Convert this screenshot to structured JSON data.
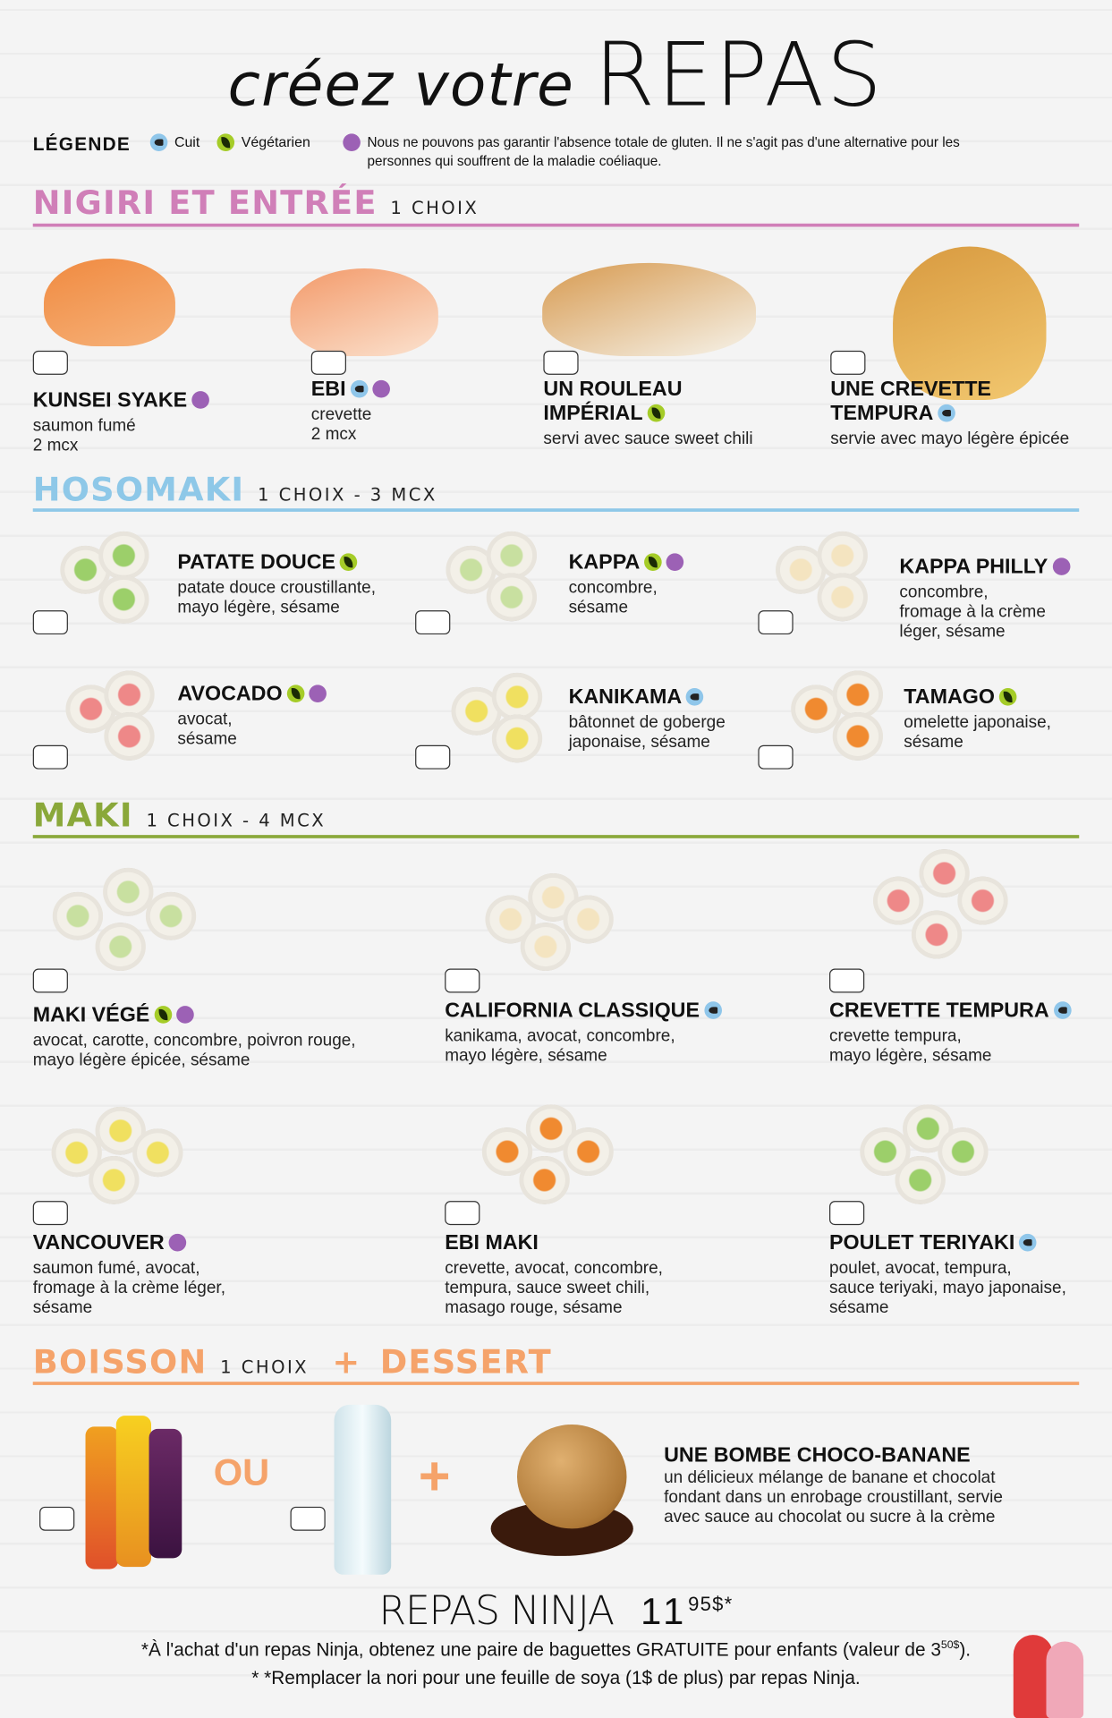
{
  "header": {
    "title_small": "créez votre",
    "title_big": "REPAS"
  },
  "legend": {
    "label": "LÉGENDE",
    "cuit": "Cuit",
    "vegetarien": "Végétarien",
    "gluten_note": "Nous ne pouvons pas garantir l'absence totale de gluten. Il ne s'agit pas d'une alternative pour les personnes qui souffrent de la maladie coéliaque."
  },
  "colors": {
    "nigiri": "#d07fb8",
    "hosomaki": "#8ec8e8",
    "maki": "#8aa83a",
    "boisson": "#f5a36a",
    "cuit": "#8fc6ea",
    "vegetarien": "#a5cc28",
    "gluten": "#9c61b5"
  },
  "sections": [
    {
      "title": "NIGIRI ET ENTRÉE",
      "sub": "1 CHOIX",
      "items": [
        {
          "name": "KUNSEI SYAKE",
          "icons": [
            "gluten"
          ],
          "desc": [
            "saumon fumé",
            "2 mcx"
          ]
        },
        {
          "name": "EBI",
          "icons": [
            "cuit",
            "gluten"
          ],
          "desc": [
            "crevette",
            "2 mcx"
          ]
        },
        {
          "name": "UN ROULEAU IMPÉRIAL",
          "icons": [
            "veg"
          ],
          "desc": [
            "servi avec sauce sweet chili"
          ]
        },
        {
          "name": "UNE CREVETTE TEMPURA",
          "icons": [
            "cuit"
          ],
          "desc": [
            "servie avec mayo légère épicée"
          ]
        }
      ]
    },
    {
      "title": "HOSOMAKI",
      "sub": "1 CHOIX - 3 MCX",
      "items": [
        {
          "name": "PATATE DOUCE",
          "icons": [
            "veg"
          ],
          "desc": [
            "patate douce croustillante,",
            "mayo légère, sésame"
          ]
        },
        {
          "name": "KAPPA",
          "icons": [
            "veg",
            "gluten"
          ],
          "desc": [
            "concombre,",
            "sésame"
          ]
        },
        {
          "name": "KAPPA PHILLY",
          "icons": [
            "gluten"
          ],
          "desc": [
            "concombre,",
            "fromage à la crème",
            "léger, sésame"
          ]
        },
        {
          "name": "AVOCADO",
          "icons": [
            "veg",
            "gluten"
          ],
          "desc": [
            "avocat,",
            "sésame"
          ]
        },
        {
          "name": "KANIKAMA",
          "icons": [
            "cuit"
          ],
          "desc": [
            "bâtonnet de goberge",
            "japonaise, sésame"
          ]
        },
        {
          "name": "TAMAGO",
          "icons": [
            "veg"
          ],
          "desc": [
            "omelette japonaise,",
            "sésame"
          ]
        }
      ]
    },
    {
      "title": "MAKI",
      "sub": "1 CHOIX - 4 MCX",
      "items": [
        {
          "name": "MAKI VÉGÉ",
          "icons": [
            "veg",
            "gluten"
          ],
          "desc": [
            "avocat, carotte, concombre, poivron rouge,",
            "mayo légère épicée, sésame"
          ]
        },
        {
          "name": "CALIFORNIA CLASSIQUE",
          "icons": [
            "cuit"
          ],
          "desc": [
            "kanikama, avocat, concombre,",
            "mayo légère, sésame"
          ]
        },
        {
          "name": "CREVETTE TEMPURA",
          "icons": [
            "cuit"
          ],
          "desc": [
            "crevette tempura,",
            "mayo légère, sésame"
          ]
        },
        {
          "name": "VANCOUVER",
          "icons": [
            "gluten"
          ],
          "desc": [
            "saumon fumé, avocat,",
            "fromage à la crème léger,",
            "sésame"
          ]
        },
        {
          "name": "EBI MAKI",
          "icons": [],
          "desc": [
            "crevette, avocat, concombre,",
            "tempura, sauce sweet chili,",
            "masago rouge, sésame"
          ]
        },
        {
          "name": "POULET TERIYAKI",
          "icons": [
            "cuit"
          ],
          "desc": [
            "poulet, avocat, tempura,",
            "sauce teriyaki, mayo japonaise,",
            "sésame"
          ]
        }
      ]
    }
  ],
  "boisson": {
    "title": "BOISSON",
    "sub": "1 CHOIX",
    "plus": "+",
    "title2": "DESSERT",
    "ou": "OU",
    "plus_sign": "+",
    "dessert": {
      "name": "UNE BOMBE CHOCO-BANANE",
      "desc": [
        "un délicieux mélange de banane et chocolat",
        "fondant dans un enrobage croustillant, servie",
        "avec sauce au chocolat ou sucre à la crème"
      ]
    }
  },
  "footer": {
    "meal": "REPAS NINJA",
    "price_main": "11",
    "price_cents": "95$*",
    "note1": "*À l'achat d'un repas Ninja, obtenez une paire de baguettes GRATUITE pour enfants (valeur de 3",
    "note1_sup": "50$",
    "note1_end": ").",
    "note2": "* *Remplacer la nori pour une feuille de soya (1$ de plus) par repas Ninja."
  }
}
